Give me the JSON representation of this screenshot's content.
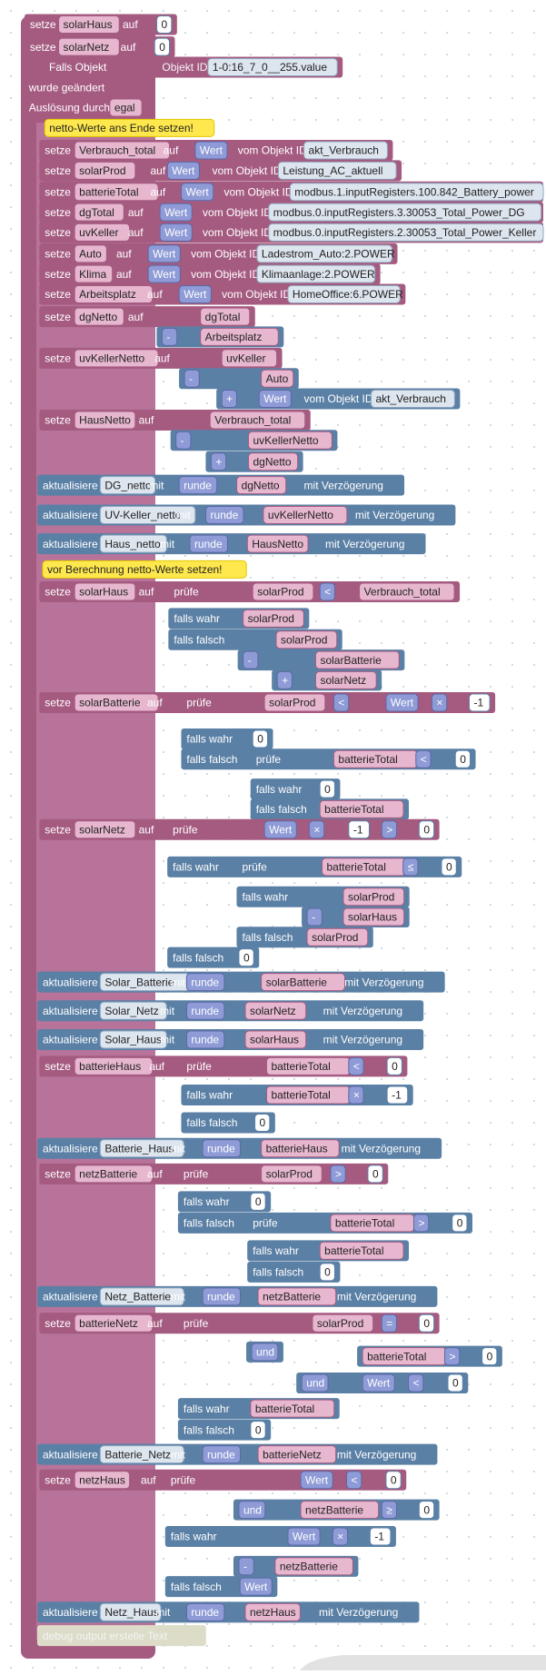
{
  "lines": [
    [
      "setze",
      "solarHaus",
      "auf",
      "0"
    ],
    [
      "setze",
      "solarNetz",
      "auf",
      "0"
    ],
    [
      "Falls Objekt",
      "Objekt ID",
      "1-0:16_7_0__255.value"
    ],
    [
      "wurde geändert"
    ],
    [
      "Auslösung durch",
      "egal"
    ],
    [
      "netto-Werte ans Ende setzen!"
    ],
    [
      "setze",
      "Verbrauch_total",
      "auf",
      "Wert",
      "vom Objekt ID",
      "akt_Verbrauch"
    ],
    [
      "setze",
      "solarProd",
      "auf",
      "Wert",
      "vom Objekt ID",
      "Leistung_AC_aktuell"
    ],
    [
      "setze",
      "batterieTotal",
      "auf",
      "Wert",
      "vom Objekt ID",
      "modbus.1.inputRegisters.100.842_Battery_power"
    ],
    [
      "setze",
      "dgTotal",
      "auf",
      "Wert",
      "vom Objekt ID",
      "modbus.0.inputRegisters.3.30053_Total_Power_DG"
    ],
    [
      "setze",
      "uvKeller",
      "auf",
      "Wert",
      "vom Objekt ID",
      "modbus.0.inputRegisters.2.30053_Total_Power_Keller"
    ],
    [
      "setze",
      "Auto",
      "auf",
      "Wert",
      "vom Objekt ID",
      "Ladestrom_Auto:2.POWER"
    ],
    [
      "setze",
      "Klima",
      "auf",
      "Wert",
      "vom Objekt ID",
      "Klimaanlage:2.POWER"
    ],
    [
      "setze",
      "Arbeitsplatz",
      "auf",
      "Wert",
      "vom Objekt ID",
      "HomeOffice:6.POWER"
    ],
    [
      "setze",
      "dgNetto",
      "auf",
      "dgTotal"
    ],
    [
      "-",
      "Arbeitsplatz"
    ],
    [
      "setze",
      "uvKellerNetto",
      "auf",
      "uvKeller"
    ],
    [
      "-",
      "Auto"
    ],
    [
      "+",
      "Wert",
      "vom Objekt ID",
      "akt_Verbrauch"
    ],
    [
      "setze",
      "HausNetto",
      "auf",
      "Verbrauch_total"
    ],
    [
      "-",
      "uvKellerNetto"
    ],
    [
      "+",
      "dgNetto"
    ],
    [
      "aktualisiere",
      "DG_netto",
      "mit",
      "runde",
      "dgNetto",
      "mit Verzögerung"
    ],
    [
      "aktualisiere",
      "UV-Keller_netto",
      "mit",
      "runde",
      "uvKellerNetto",
      "mit Verzögerung"
    ],
    [
      "aktualisiere",
      "Haus_netto",
      "mit",
      "runde",
      "HausNetto",
      "mit Verzögerung"
    ],
    [
      "vor Berechnung netto-Werte setzen!"
    ],
    [
      "setze",
      "solarHaus",
      "auf",
      "prüfe",
      "solarProd",
      "<",
      "Verbrauch_total"
    ],
    [
      "falls wahr",
      "solarProd"
    ],
    [
      "falls falsch",
      "solarProd"
    ],
    [
      "-",
      "solarBatterie"
    ],
    [
      "+",
      "solarNetz"
    ],
    [
      "setze",
      "solarBatterie",
      "auf",
      "prüfe",
      "solarProd",
      "<",
      "Wert",
      "×",
      "-1"
    ],
    [
      "falls wahr",
      "0"
    ],
    [
      "falls falsch",
      "prüfe",
      "batterieTotal",
      "<",
      "0"
    ],
    [
      "falls wahr",
      "0"
    ],
    [
      "falls falsch",
      "batterieTotal"
    ],
    [
      "setze",
      "solarNetz",
      "auf",
      "prüfe",
      "Wert",
      "×",
      "-1",
      ">",
      "0"
    ],
    [
      "falls wahr",
      "prüfe",
      "batterieTotal",
      "≤",
      "0"
    ],
    [
      "falls wahr",
      "solarProd"
    ],
    [
      "-",
      "solarHaus"
    ],
    [
      "falls falsch",
      "solarProd"
    ],
    [
      "falls falsch",
      "0"
    ],
    [
      "aktualisiere",
      "Solar_Batterie",
      "mit",
      "runde",
      "solarBatterie",
      "mit Verzögerung"
    ],
    [
      "aktualisiere",
      "Solar_Netz",
      "mit",
      "runde",
      "solarNetz",
      "mit Verzögerung"
    ],
    [
      "aktualisiere",
      "Solar_Haus",
      "mit",
      "runde",
      "solarHaus",
      "mit Verzögerung"
    ],
    [
      "setze",
      "batterieHaus",
      "auf",
      "prüfe",
      "batterieTotal",
      "<",
      "0"
    ],
    [
      "falls wahr",
      "batterieTotal",
      "×",
      "-1"
    ],
    [
      "falls falsch",
      "0"
    ],
    [
      "aktualisiere",
      "Batterie_Haus",
      "mit",
      "runde",
      "batterieHaus",
      "mit Verzögerung"
    ],
    [
      "setze",
      "netzBatterie",
      "auf",
      "prüfe",
      "solarProd",
      ">",
      "0"
    ],
    [
      "falls wahr",
      "0"
    ],
    [
      "falls falsch",
      "prüfe",
      "batterieTotal",
      ">",
      "0"
    ],
    [
      "falls wahr",
      "batterieTotal"
    ],
    [
      "falls falsch",
      "0"
    ],
    [
      "aktualisiere",
      "Netz_Batterie",
      "mit",
      "runde",
      "netzBatterie",
      "mit Verzögerung"
    ],
    [
      "setze",
      "batterieNetz",
      "auf",
      "prüfe",
      "solarProd",
      "=",
      "0"
    ],
    [
      "und"
    ],
    [
      "batterieTotal",
      ">",
      "0"
    ],
    [
      "und",
      "Wert",
      "<",
      "0"
    ],
    [
      "falls wahr",
      "batterieTotal"
    ],
    [
      "falls falsch",
      "0"
    ],
    [
      "aktualisiere",
      "Batterie_Netz",
      "mit",
      "runde",
      "batterieNetz",
      "mit Verzögerung"
    ],
    [
      "setze",
      "netzHaus",
      "auf",
      "prüfe",
      "Wert",
      "<",
      "0"
    ],
    [
      "und",
      "netzBatterie",
      "≥",
      "0"
    ],
    [
      "falls wahr",
      "Wert",
      "×",
      "-1"
    ],
    [
      "-",
      "netzBatterie"
    ],
    [
      "falls falsch",
      "Wert"
    ],
    [
      "aktualisiere",
      "Netz_Haus",
      "mit",
      "runde",
      "netzHaus",
      "mit Verzögerung"
    ],
    [
      "debug output erstelle Text"
    ]
  ]
}
